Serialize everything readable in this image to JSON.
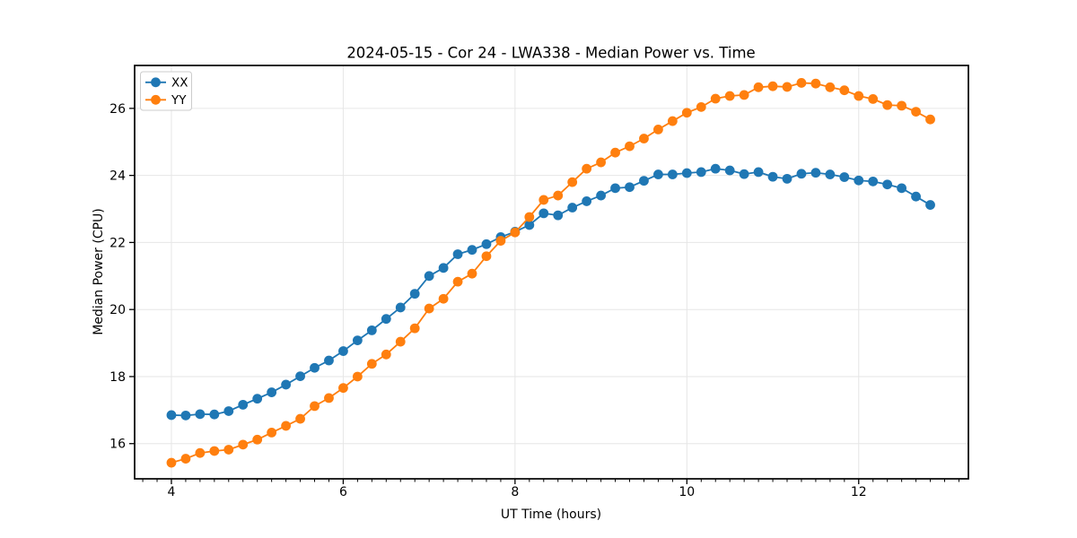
{
  "figure": {
    "background": "#ffffff"
  },
  "chart_data": {
    "type": "line",
    "title": "2024-05-15 - Cor 24 - LWA338 - Median Power vs. Time",
    "xlabel": "UT Time (hours)",
    "ylabel": "Median Power (CPU)",
    "x": [
      4.0,
      4.1667,
      4.3333,
      4.5,
      4.6667,
      4.8333,
      5.0,
      5.1667,
      5.3333,
      5.5,
      5.6667,
      5.8333,
      6.0,
      6.1667,
      6.3333,
      6.5,
      6.6667,
      6.8333,
      7.0,
      7.1667,
      7.3333,
      7.5,
      7.6667,
      7.8333,
      8.0,
      8.1667,
      8.3333,
      8.5,
      8.6667,
      8.8333,
      9.0,
      9.1667,
      9.3333,
      9.5,
      9.6667,
      9.8333,
      10.0,
      10.1667,
      10.3333,
      10.5,
      10.6667,
      10.8333,
      11.0,
      11.1667,
      11.3333,
      11.5,
      11.6667,
      11.8333,
      12.0,
      12.1667,
      12.3333,
      12.5,
      12.6667,
      12.8333
    ],
    "series": [
      {
        "name": "XX",
        "color": "#1f77b4",
        "marker": "circle",
        "values": [
          16.85,
          16.84,
          16.88,
          16.87,
          16.97,
          17.16,
          17.34,
          17.53,
          17.76,
          18.01,
          18.26,
          18.48,
          18.76,
          19.08,
          19.38,
          19.72,
          20.06,
          20.47,
          21.0,
          21.24,
          21.65,
          21.78,
          21.95,
          22.16,
          22.32,
          22.52,
          22.87,
          22.81,
          23.04,
          23.23,
          23.4,
          23.62,
          23.65,
          23.84,
          24.03,
          24.03,
          24.07,
          24.1,
          24.2,
          24.15,
          24.04,
          24.1,
          23.96,
          23.9,
          24.05,
          24.08,
          24.03,
          23.95,
          23.85,
          23.82,
          23.73,
          23.62,
          23.37,
          23.12
        ]
      },
      {
        "name": "YY",
        "color": "#ff7f0e",
        "marker": "circle",
        "values": [
          15.43,
          15.55,
          15.72,
          15.78,
          15.82,
          15.97,
          16.12,
          16.33,
          16.53,
          16.74,
          17.12,
          17.36,
          17.66,
          18.0,
          18.38,
          18.66,
          19.04,
          19.44,
          20.03,
          20.32,
          20.83,
          21.07,
          21.59,
          22.05,
          22.3,
          22.76,
          23.27,
          23.4,
          23.8,
          24.2,
          24.39,
          24.68,
          24.87,
          25.1,
          25.37,
          25.62,
          25.87,
          26.04,
          26.29,
          26.37,
          26.4,
          26.63,
          26.66,
          26.64,
          26.76,
          26.74,
          26.63,
          26.54,
          26.37,
          26.28,
          26.1,
          26.08,
          25.9,
          25.67
        ]
      }
    ],
    "axes": {
      "xlim": [
        3.572,
        13.277
      ],
      "ylim": [
        14.95,
        27.28
      ],
      "xticks": [
        4,
        6,
        8,
        10,
        12
      ],
      "yticks": [
        16,
        18,
        20,
        22,
        24,
        26
      ],
      "x_minor_step": 0.16667,
      "grid": true,
      "grid_color": "#e6e6e6",
      "spine_color": "#000000",
      "legend_position": "upper left",
      "legend_labels": [
        "XX",
        "YY"
      ]
    }
  }
}
